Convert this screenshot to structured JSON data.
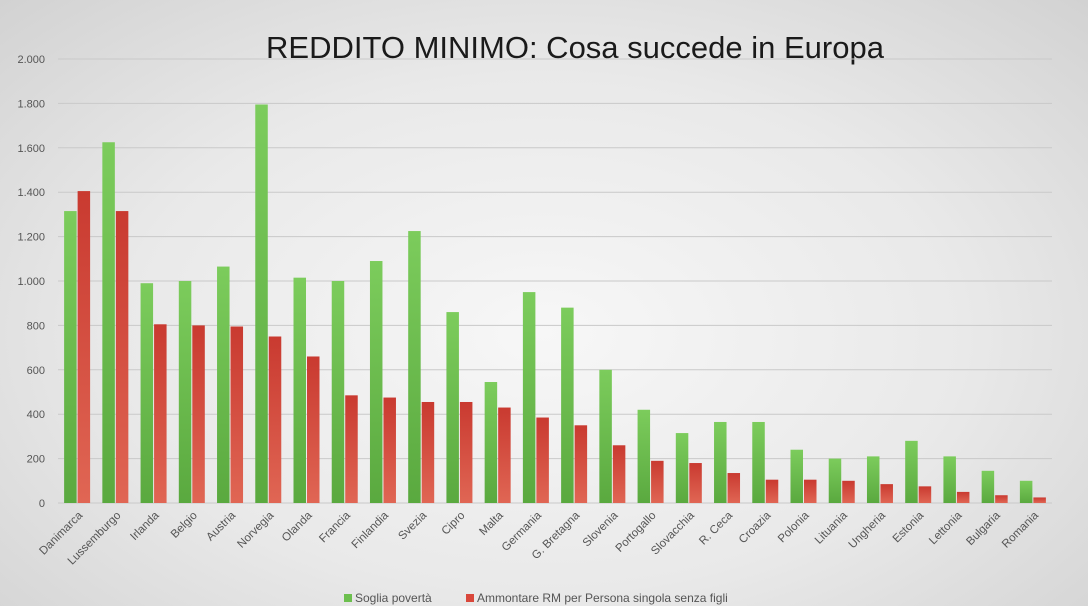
{
  "chart_data": {
    "type": "bar",
    "title": "REDDITO MINIMO: Cosa succede in Europa",
    "xlabel": "",
    "ylabel": "",
    "ylim": [
      0,
      2000
    ],
    "yticks": [
      0,
      200,
      400,
      600,
      800,
      1000,
      1200,
      1400,
      1600,
      1800,
      2000
    ],
    "ytick_labels": [
      "0",
      "200",
      "400",
      "600",
      "800",
      "1.000",
      "1.200",
      "1.400",
      "1.600",
      "1.800",
      "2.000"
    ],
    "grid": true,
    "legend_position": "bottom",
    "categories": [
      "Danimarca",
      "Lussemburgo",
      "Irlanda",
      "Belgio",
      "Austria",
      "Norvegia",
      "Olanda",
      "Francia",
      "Finlandia",
      "Svezia",
      "Cipro",
      "Malta",
      "Germania",
      "G. Bretagna",
      "Slovenia",
      "Portogallo",
      "Slovacchia",
      "R. Ceca",
      "Croazia",
      "Polonia",
      "Lituania",
      "Ungheria",
      "Estonia",
      "Lettonia",
      "Bulgaria",
      "Romania"
    ],
    "series": [
      {
        "name": "Soglia povertà",
        "color": "#6cbf4e",
        "values": [
          1315,
          1625,
          990,
          1000,
          1065,
          1795,
          1015,
          1000,
          1090,
          1225,
          860,
          545,
          950,
          880,
          600,
          420,
          315,
          365,
          365,
          240,
          200,
          210,
          280,
          210,
          145,
          100
        ]
      },
      {
        "name": "Ammontare RM per Persona singola senza figli",
        "color": "#d9473b",
        "values": [
          1405,
          1315,
          805,
          800,
          795,
          750,
          660,
          485,
          475,
          455,
          455,
          430,
          385,
          350,
          260,
          190,
          180,
          135,
          105,
          105,
          100,
          85,
          75,
          50,
          35,
          25
        ]
      }
    ]
  }
}
